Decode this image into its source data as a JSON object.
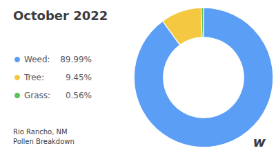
{
  "chart_data": {
    "type": "pie",
    "title": "October 2022",
    "subtitle": [
      "Rio Rancho, NM",
      "Pollen Breakdown"
    ],
    "annotations": [
      "w"
    ],
    "categories": [
      "Weed:",
      "Tree:",
      "Grass:"
    ],
    "values": [
      89.99,
      9.45,
      0.56
    ],
    "value_labels": [
      "89.99%",
      "9.45%",
      "0.56%"
    ],
    "colors": [
      "#5b9ef5",
      "#f5c842",
      "#5cbf5a"
    ],
    "legend": "left"
  }
}
